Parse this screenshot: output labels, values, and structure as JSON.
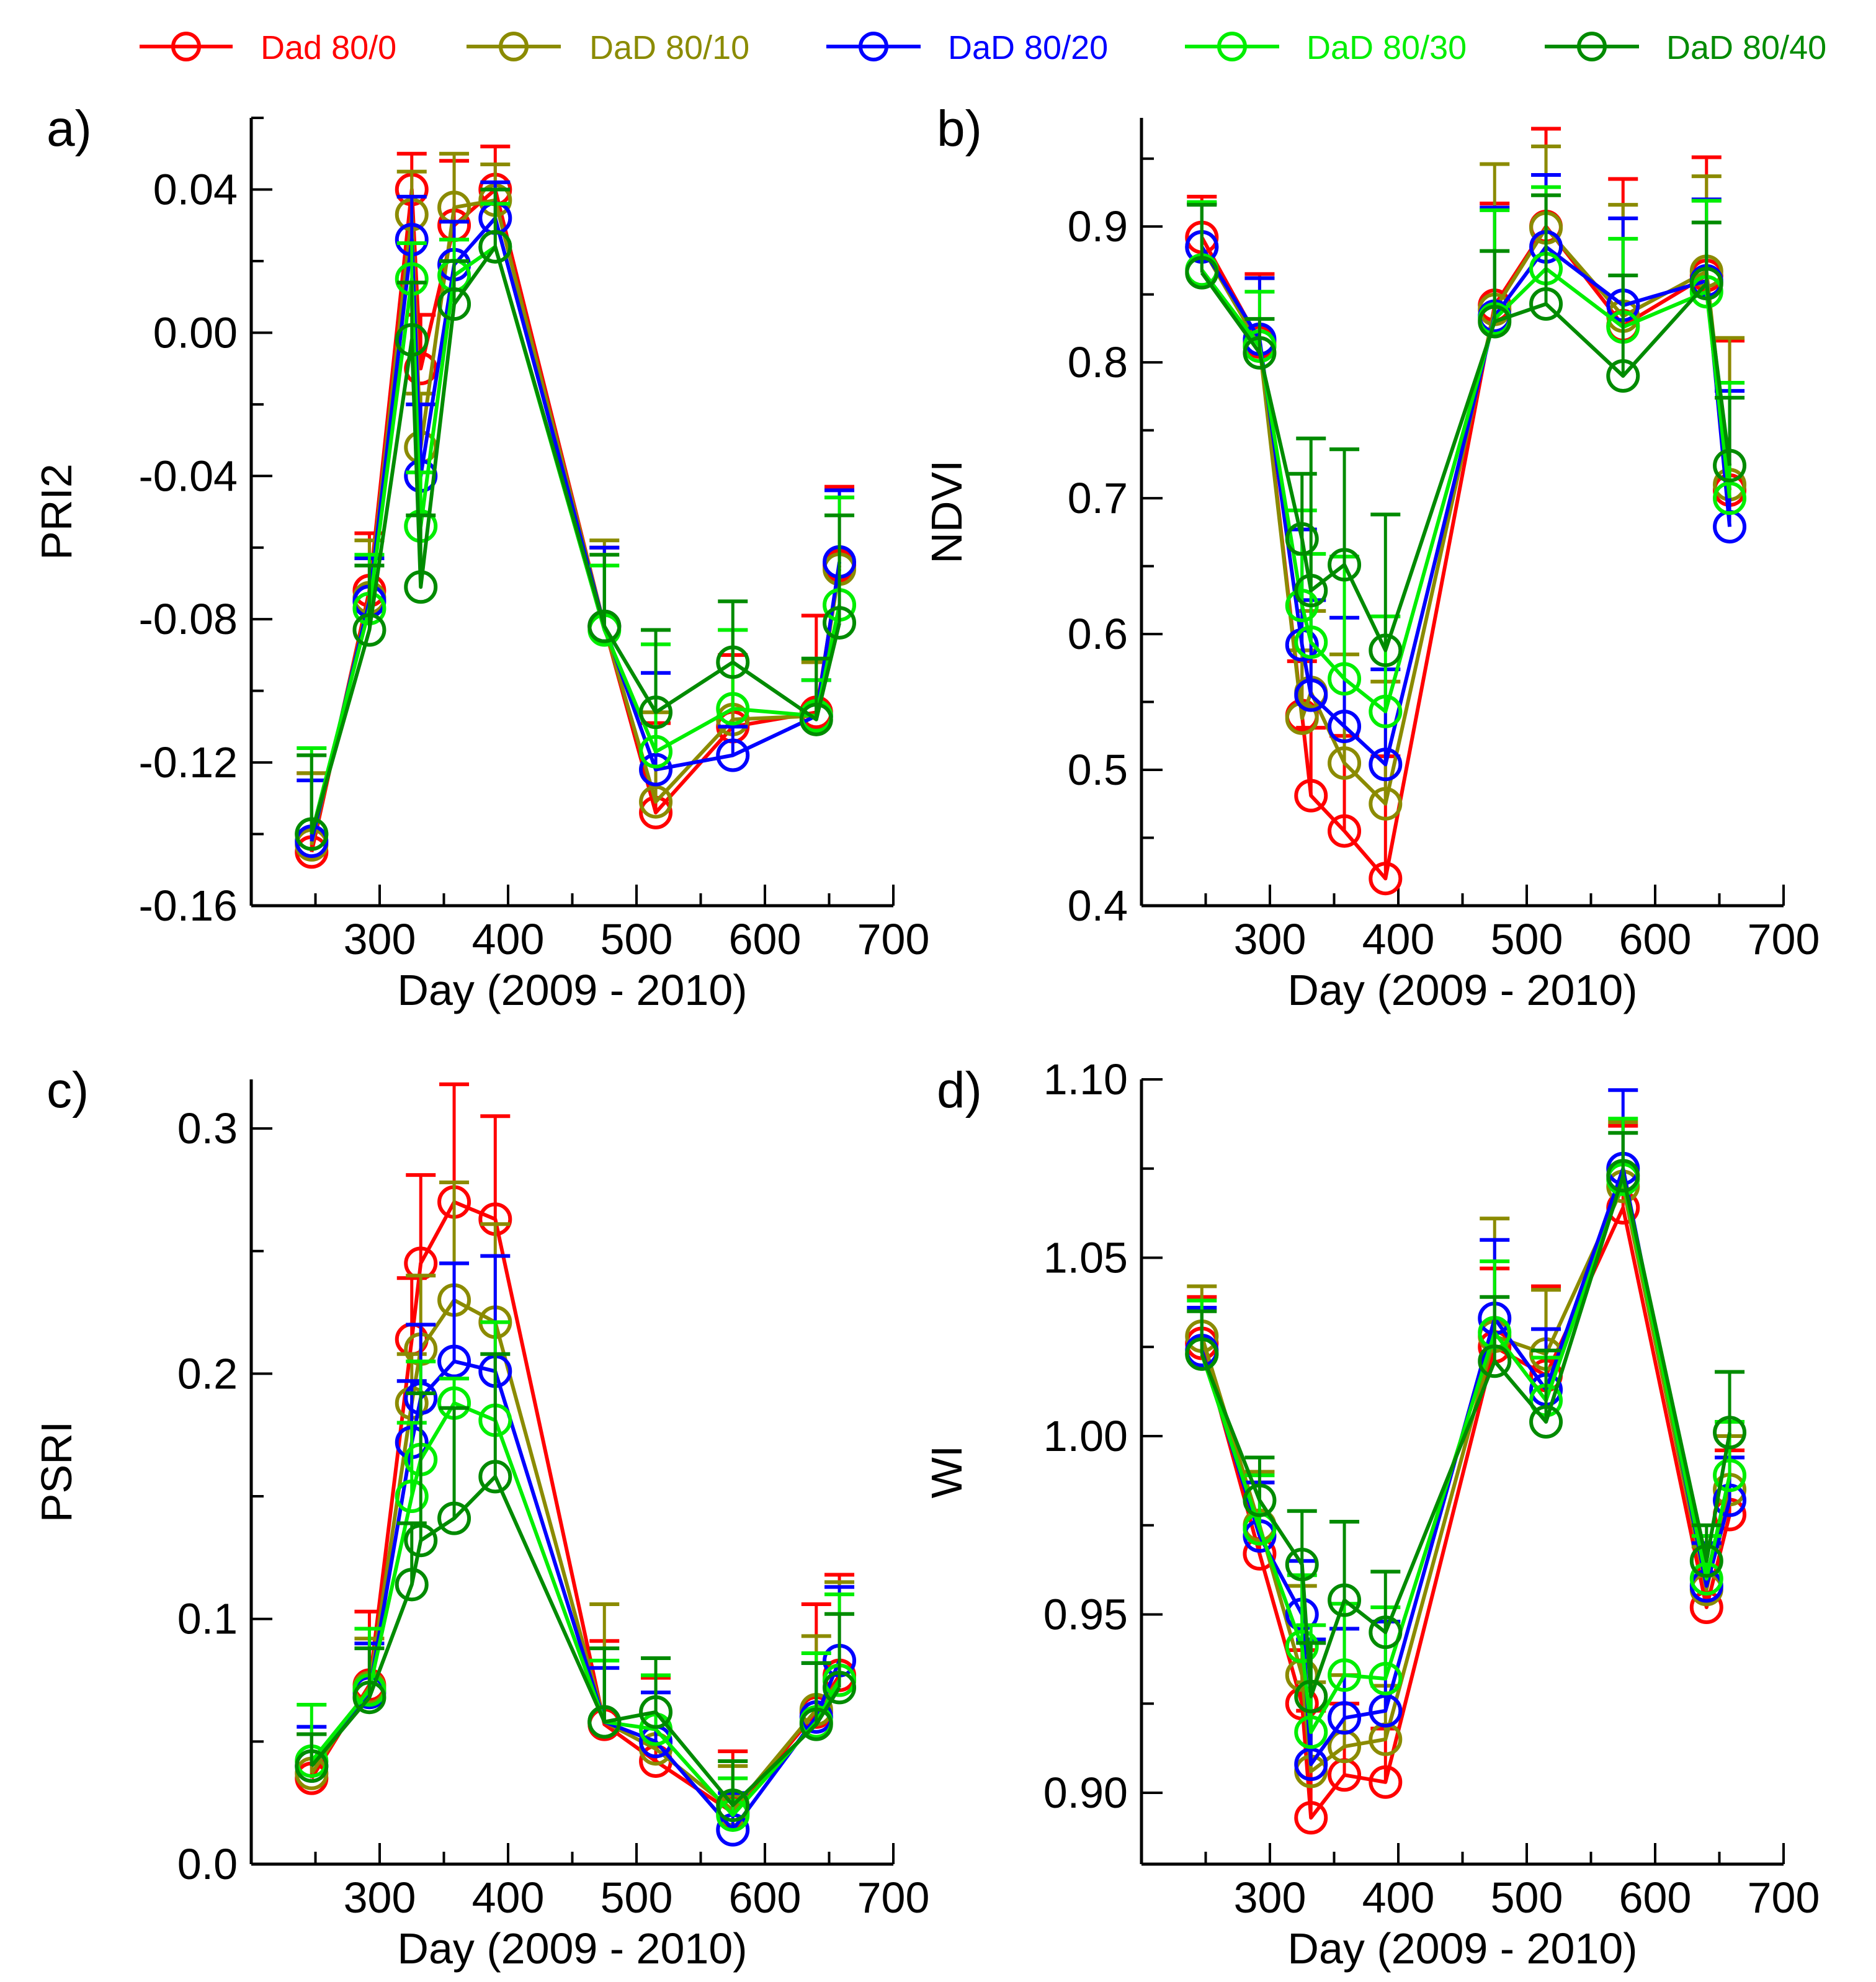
{
  "legend": [
    {
      "name": "Dad 80/0",
      "color": "#ff0000"
    },
    {
      "name": "DaD 80/10",
      "color": "#8b8b00"
    },
    {
      "name": "DaD 80/20",
      "color": "#0000ff"
    },
    {
      "name": "DaD 80/30",
      "color": "#00ee00"
    },
    {
      "name": "DaD 80/40",
      "color": "#008b00"
    }
  ],
  "chart_data": [
    {
      "type": "line",
      "panel_label": "a)",
      "xlabel": "Day (2009 - 2010)",
      "ylabel": "PRI2",
      "xlim": [
        200,
        700
      ],
      "ylim": [
        -0.16,
        0.06
      ],
      "xticks": [
        "300",
        "400",
        "500",
        "600",
        "700"
      ],
      "yticks": [
        "-0.16",
        "-0.12",
        "-0.08",
        "-0.04",
        "0.00",
        "0.04"
      ],
      "x": [
        247,
        292,
        325,
        332,
        358,
        390,
        475,
        515,
        575,
        640,
        658
      ],
      "series": [
        {
          "name": "Dad 80/0",
          "values": [
            -0.145,
            -0.072,
            0.04,
            -0.01,
            0.03,
            0.04,
            -0.082,
            -0.134,
            -0.11,
            -0.106,
            -0.065
          ],
          "errors": [
            0.022,
            0.016,
            0.01,
            0.015,
            0.018,
            0.012,
            0.022,
            0.025,
            0.02,
            0.027,
            0.022
          ]
        },
        {
          "name": "DaD 80/10",
          "values": [
            -0.143,
            -0.074,
            0.033,
            -0.032,
            0.035,
            0.037,
            -0.082,
            -0.131,
            -0.108,
            -0.107,
            -0.066
          ],
          "errors": [
            0.02,
            0.016,
            0.012,
            0.015,
            0.015,
            0.01,
            0.024,
            0.025,
            0.025,
            0.015,
            0.02
          ]
        },
        {
          "name": "DaD 80/20",
          "values": [
            -0.142,
            -0.075,
            0.026,
            -0.04,
            0.019,
            0.032,
            -0.082,
            -0.122,
            -0.118,
            -0.107,
            -0.064
          ],
          "errors": [
            0.017,
            0.012,
            0.012,
            0.02,
            0.012,
            0.01,
            0.022,
            0.027,
            0.008,
            0.01,
            0.02
          ]
        },
        {
          "name": "DaD 80/30",
          "values": [
            -0.14,
            -0.077,
            0.015,
            -0.054,
            0.016,
            0.024,
            -0.083,
            -0.117,
            -0.105,
            -0.107,
            -0.076
          ],
          "errors": [
            0.024,
            0.015,
            0.01,
            0.015,
            0.01,
            0.012,
            0.018,
            0.03,
            0.022,
            0.01,
            0.03
          ]
        },
        {
          "name": "DaD 80/40",
          "values": [
            -0.14,
            -0.083,
            -0.002,
            -0.071,
            0.008,
            0.024,
            -0.082,
            -0.106,
            -0.092,
            -0.108,
            -0.081
          ],
          "errors": [
            0.022,
            0.018,
            0.016,
            0.02,
            0.012,
            0.016,
            0.02,
            0.023,
            0.017,
            0.017,
            0.03
          ]
        }
      ]
    },
    {
      "type": "line",
      "panel_label": "b)",
      "xlabel": "Day (2009 - 2010)",
      "ylabel": "NDVI",
      "xlim": [
        200,
        700
      ],
      "ylim": [
        0.4,
        0.98
      ],
      "xticks": [
        "300",
        "400",
        "500",
        "600",
        "700"
      ],
      "yticks": [
        "0.4",
        "0.5",
        "0.6",
        "0.7",
        "0.8",
        "0.9"
      ],
      "x": [
        247,
        292,
        325,
        332,
        358,
        390,
        475,
        515,
        575,
        640,
        658
      ],
      "series": [
        {
          "name": "Dad 80/0",
          "values": [
            0.892,
            0.815,
            0.54,
            0.481,
            0.455,
            0.42,
            0.842,
            0.9,
            0.827,
            0.864,
            0.706
          ],
          "errors": [
            0.03,
            0.05,
            0.04,
            0.05,
            0.07,
            0.09,
            0.075,
            0.072,
            0.108,
            0.087,
            0.11
          ]
        },
        {
          "name": "DaD 80/10",
          "values": [
            0.885,
            0.812,
            0.538,
            0.557,
            0.505,
            0.475,
            0.839,
            0.899,
            0.834,
            0.867,
            0.71
          ],
          "errors": [
            0.032,
            0.05,
            0.05,
            0.06,
            0.08,
            0.09,
            0.107,
            0.06,
            0.082,
            0.07,
            0.108
          ]
        },
        {
          "name": "DaD 80/20",
          "values": [
            0.885,
            0.817,
            0.592,
            0.555,
            0.532,
            0.504,
            0.834,
            0.885,
            0.842,
            0.86,
            0.679
          ],
          "errors": [
            0.032,
            0.045,
            0.085,
            0.07,
            0.08,
            0.07,
            0.08,
            0.053,
            0.064,
            0.06,
            0.1
          ]
        },
        {
          "name": "DaD 80/30",
          "values": [
            0.868,
            0.812,
            0.621,
            0.594,
            0.567,
            0.543,
            0.832,
            0.869,
            0.826,
            0.852,
            0.7
          ],
          "errors": [
            0.05,
            0.04,
            0.07,
            0.065,
            0.09,
            0.07,
            0.08,
            0.06,
            0.065,
            0.067,
            0.085
          ]
        },
        {
          "name": "DaD 80/40",
          "values": [
            0.866,
            0.807,
            0.67,
            0.632,
            0.651,
            0.588,
            0.83,
            0.843,
            0.79,
            0.858,
            0.724
          ],
          "errors": [
            0.05,
            0.025,
            0.048,
            0.112,
            0.085,
            0.1,
            0.052,
            0.08,
            0.074,
            0.045,
            0.05
          ]
        }
      ]
    },
    {
      "type": "line",
      "panel_label": "c)",
      "xlabel": "Day (2009 - 2010)",
      "ylabel": "PSRI",
      "xlim": [
        200,
        700
      ],
      "ylim": [
        0.0,
        0.32
      ],
      "xticks": [
        "300",
        "400",
        "500",
        "600",
        "700"
      ],
      "yticks": [
        "0.0",
        "0.1",
        "0.2",
        "0.3"
      ],
      "x": [
        247,
        292,
        325,
        332,
        358,
        390,
        475,
        515,
        575,
        640,
        658
      ],
      "series": [
        {
          "name": "Dad 80/0",
          "values": [
            0.035,
            0.073,
            0.214,
            0.245,
            0.27,
            0.263,
            0.057,
            0.042,
            0.021,
            0.062,
            0.077
          ],
          "errors": [
            0.018,
            0.03,
            0.025,
            0.036,
            0.048,
            0.042,
            0.034,
            0.034,
            0.025,
            0.044,
            0.041
          ]
        },
        {
          "name": "DaD 80/10",
          "values": [
            0.037,
            0.072,
            0.188,
            0.21,
            0.23,
            0.221,
            0.058,
            0.047,
            0.022,
            0.063,
            0.075
          ],
          "errors": [
            0.016,
            0.02,
            0.02,
            0.03,
            0.048,
            0.04,
            0.048,
            0.03,
            0.018,
            0.03,
            0.04
          ]
        },
        {
          "name": "DaD 80/20",
          "values": [
            0.04,
            0.07,
            0.172,
            0.19,
            0.205,
            0.201,
            0.058,
            0.05,
            0.014,
            0.06,
            0.083
          ],
          "errors": [
            0.016,
            0.02,
            0.025,
            0.03,
            0.04,
            0.047,
            0.022,
            0.02,
            0.015,
            0.022,
            0.03
          ]
        },
        {
          "name": "DaD 80/30",
          "values": [
            0.042,
            0.071,
            0.15,
            0.165,
            0.188,
            0.181,
            0.058,
            0.055,
            0.02,
            0.058,
            0.075
          ],
          "errors": [
            0.023,
            0.025,
            0.03,
            0.04,
            0.01,
            0.04,
            0.025,
            0.022,
            0.015,
            0.028,
            0.035
          ]
        },
        {
          "name": "DaD 80/40",
          "values": [
            0.04,
            0.068,
            0.114,
            0.132,
            0.141,
            0.158,
            0.058,
            0.062,
            0.024,
            0.057,
            0.072
          ],
          "errors": [
            0.013,
            0.02,
            0.025,
            0.06,
            0.045,
            0.05,
            0.03,
            0.022,
            0.018,
            0.025,
            0.03
          ]
        }
      ]
    },
    {
      "type": "line",
      "panel_label": "d)",
      "xlabel": "Day (2009 - 2010)",
      "ylabel": "WI",
      "xlim": [
        200,
        700
      ],
      "ylim": [
        0.88,
        1.1
      ],
      "xticks": [
        "300",
        "400",
        "500",
        "600",
        "700"
      ],
      "yticks": [
        "0.90",
        "0.95",
        "1.00",
        "1.05",
        "1.10"
      ],
      "x": [
        247,
        292,
        325,
        332,
        358,
        390,
        475,
        515,
        575,
        640,
        658
      ],
      "series": [
        {
          "name": "Dad 80/0",
          "values": [
            1.026,
            0.967,
            0.925,
            0.893,
            0.905,
            0.903,
            1.025,
            1.017,
            1.064,
            0.952,
            0.978
          ],
          "errors": [
            0.013,
            0.02,
            0.015,
            0.03,
            0.02,
            0.015,
            0.022,
            0.025,
            0.023,
            0.02,
            0.018
          ]
        },
        {
          "name": "DaD 80/10",
          "values": [
            1.028,
            0.975,
            0.933,
            0.906,
            0.913,
            0.915,
            1.028,
            1.023,
            1.07,
            0.957,
            0.985
          ],
          "errors": [
            0.014,
            0.015,
            0.025,
            0.025,
            0.02,
            0.015,
            0.033,
            0.018,
            0.018,
            0.012,
            0.015
          ]
        },
        {
          "name": "DaD 80/20",
          "values": [
            1.024,
            0.972,
            0.95,
            0.908,
            0.921,
            0.923,
            1.033,
            1.013,
            1.075,
            0.958,
            0.982
          ],
          "errors": [
            0.012,
            0.015,
            0.015,
            0.035,
            0.025,
            0.025,
            0.022,
            0.017,
            0.022,
            0.012,
            0.012
          ]
        },
        {
          "name": "DaD 80/30",
          "values": [
            1.023,
            0.974,
            0.941,
            0.917,
            0.933,
            0.932,
            1.029,
            1.01,
            1.072,
            0.96,
            0.989
          ],
          "errors": [
            0.015,
            0.015,
            0.02,
            0.03,
            0.02,
            0.02,
            0.02,
            0.012,
            0.017,
            0.012,
            0.015
          ]
        },
        {
          "name": "DaD 80/40",
          "values": [
            1.023,
            0.982,
            0.964,
            0.927,
            0.954,
            0.945,
            1.021,
            1.004,
            1.073,
            0.965,
            1.001
          ],
          "errors": [
            0.012,
            0.012,
            0.015,
            0.015,
            0.022,
            0.017,
            0.018,
            0.02,
            0.012,
            0.01,
            0.017
          ]
        }
      ]
    }
  ]
}
